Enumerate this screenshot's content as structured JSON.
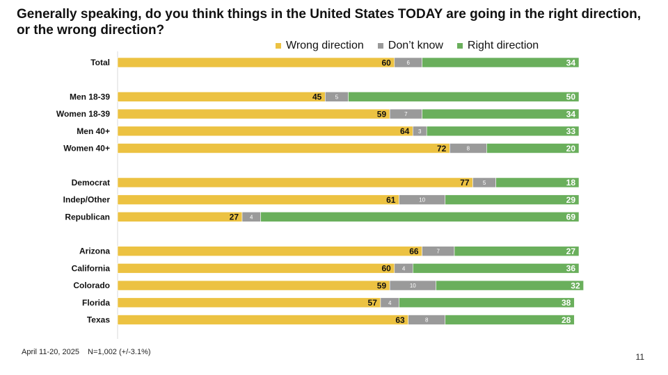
{
  "title_line1": "Generally speaking, do you think things in the United States TODAY are going in the right direction,",
  "title_line2": "or the wrong direction?",
  "footer": {
    "dates": "April 11-20, 2025",
    "sample": "N=1,002 (+/-3.1%)"
  },
  "page_number": "11",
  "colors": {
    "wrong": "#ECC242",
    "dont_know": "#9A9A9A",
    "right": "#6AAF5C"
  },
  "chart_data": {
    "type": "bar",
    "orientation": "horizontal",
    "stacked": true,
    "title": "Generally speaking, do you think things in the United States TODAY are going in the right direction, or the wrong direction?",
    "xlim": [
      0,
      100
    ],
    "grid": false,
    "legend_position": "top-right",
    "categories": [
      "Total",
      "Men 18-39",
      "Women 18-39",
      "Men 40+",
      "Women 40+",
      "Democrat",
      "Indep/Other",
      "Republican",
      "Arizona",
      "California",
      "Colorado",
      "Florida",
      "Texas"
    ],
    "groups": [
      [
        0
      ],
      [
        1,
        2,
        3,
        4
      ],
      [
        5,
        6,
        7
      ],
      [
        8,
        9,
        10,
        11,
        12
      ]
    ],
    "series": [
      {
        "name": "Wrong direction",
        "color": "#ECC242",
        "values": [
          60,
          45,
          59,
          64,
          72,
          77,
          61,
          27,
          66,
          60,
          59,
          57,
          63
        ]
      },
      {
        "name": "Don’t know",
        "color": "#9A9A9A",
        "values": [
          6,
          5,
          7,
          3,
          8,
          5,
          10,
          4,
          7,
          4,
          10,
          4,
          8
        ]
      },
      {
        "name": "Right direction",
        "color": "#6AAF5C",
        "values": [
          34,
          50,
          34,
          33,
          20,
          18,
          29,
          69,
          27,
          36,
          32,
          38,
          28
        ]
      }
    ]
  }
}
